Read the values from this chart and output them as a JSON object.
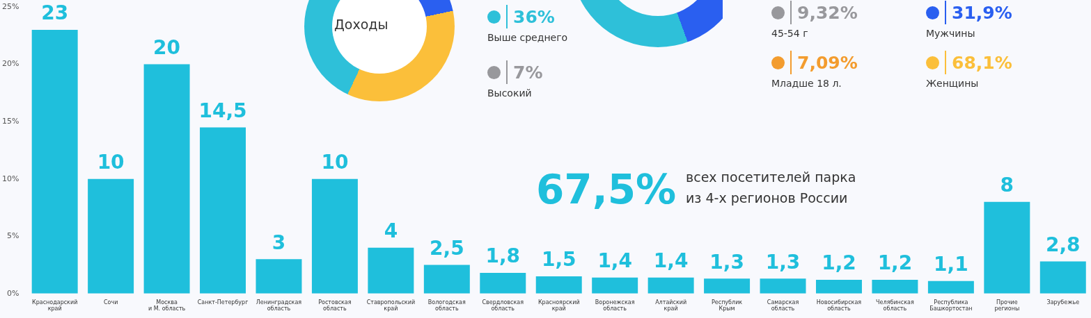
{
  "chart_data": [
    {
      "type": "bar",
      "categories": [
        "Краснодарский край",
        "Сочи",
        "Москва и М. область",
        "Санкт-Петербург",
        "Ленинградская область",
        "Ростовская область",
        "Ставропольский край",
        "Вологодская область",
        "Свердловская область",
        "Красноярский край",
        "Воронежская область",
        "Алтайский край",
        "Республик Крым",
        "Самарская область",
        "Новосибирская область",
        "Челябинская область",
        "Республика Башкортостан",
        "Прочие регионы",
        "Зарубежье"
      ],
      "values": [
        23,
        10,
        20,
        14.5,
        3,
        10,
        4,
        2.5,
        1.8,
        1.5,
        1.4,
        1.4,
        1.3,
        1.3,
        1.2,
        1.2,
        1.1,
        8,
        2.8
      ],
      "value_labels": [
        "23",
        "10",
        "20",
        "14,5",
        "3",
        "10",
        "4",
        "2,5",
        "1,8",
        "1,5",
        "1,4",
        "1,4",
        "1,3",
        "1,3",
        "1,2",
        "1,2",
        "1,1",
        "8",
        "2,8"
      ],
      "color": "#1fbfdc",
      "grid": false,
      "legend": false,
      "ylim": [
        0,
        25
      ],
      "yticks": [
        {
          "value": 0,
          "label": "0%"
        },
        {
          "value": 5,
          "label": "5%"
        },
        {
          "value": 10,
          "label": "10%"
        },
        {
          "value": 15,
          "label": "15%"
        },
        {
          "value": 20,
          "label": "20%"
        },
        {
          "value": 25,
          "label": "25%"
        }
      ],
      "annotations": [
        "67,5%",
        "всех посетителей парка\nиз 4-х регионов России"
      ]
    },
    {
      "type": "other",
      "title": "Доходы",
      "categories": [
        "Выше среднего",
        "Высокий",
        "45-54 г",
        "Младше 18 л.",
        "Мужчины",
        "Женщины"
      ],
      "value_labels": [
        "36%",
        "7%",
        "9,32%",
        "7,09%",
        "31,9%",
        "68,1%"
      ],
      "colors": [
        "#2ec0d9",
        "#98989c",
        "#98989c",
        "#f39c2e",
        "#2a5ff0",
        "#fbbf3a"
      ]
    }
  ]
}
